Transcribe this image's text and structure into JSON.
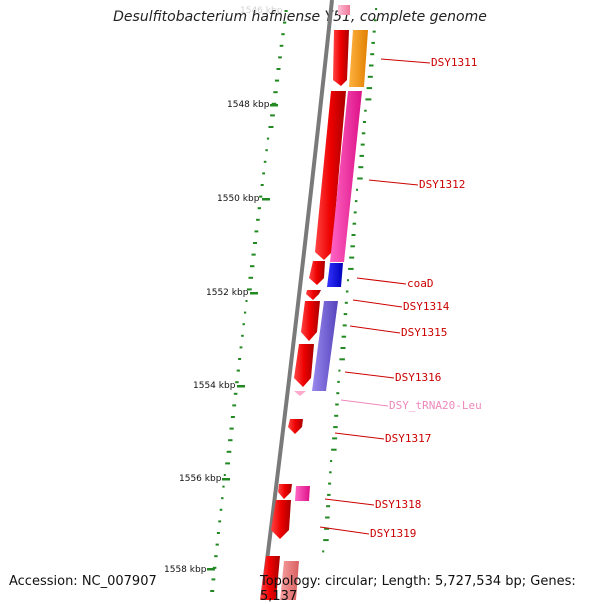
{
  "title": "Desulfitobacterium hafniense Y51, complete genome",
  "footer": {
    "accession": "Accession: NC_007907",
    "topology": "Topology: circular; Length: 5,727,534 bp; Genes: 5,137"
  },
  "ticks": [
    {
      "label": "1546 kbp",
      "faded": true
    },
    {
      "label": "1548 kbp"
    },
    {
      "label": "1550 kbp"
    },
    {
      "label": "1552 kbp"
    },
    {
      "label": "1554 kbp"
    },
    {
      "label": "1556 kbp"
    },
    {
      "label": "1558 kbp"
    }
  ],
  "genes": [
    {
      "name": "DSY1311",
      "color": "#cc0000"
    },
    {
      "name": "DSY1312",
      "color": "#cc0000"
    },
    {
      "name": "coaD",
      "color": "#cc0000"
    },
    {
      "name": "DSY1314",
      "color": "#cc0000"
    },
    {
      "name": "DSY1315",
      "color": "#cc0000"
    },
    {
      "name": "DSY1316",
      "color": "#cc0000"
    },
    {
      "name": "DSY_tRNA20-Leu",
      "color": "#ee88bb"
    },
    {
      "name": "DSY1317",
      "color": "#cc0000"
    },
    {
      "name": "DSY1318",
      "color": "#cc0000"
    },
    {
      "name": "DSY1319",
      "color": "#cc0000"
    }
  ],
  "colors": {
    "backbone": "#808080",
    "cds_forward": "#ee0000",
    "cog_orange": "#ff9900",
    "cog_pink": "#ff33aa",
    "cog_blue": "#0000ee",
    "cog_purple": "#7766dd",
    "trna": "#ffaacc",
    "gc_dots": "#228822"
  }
}
